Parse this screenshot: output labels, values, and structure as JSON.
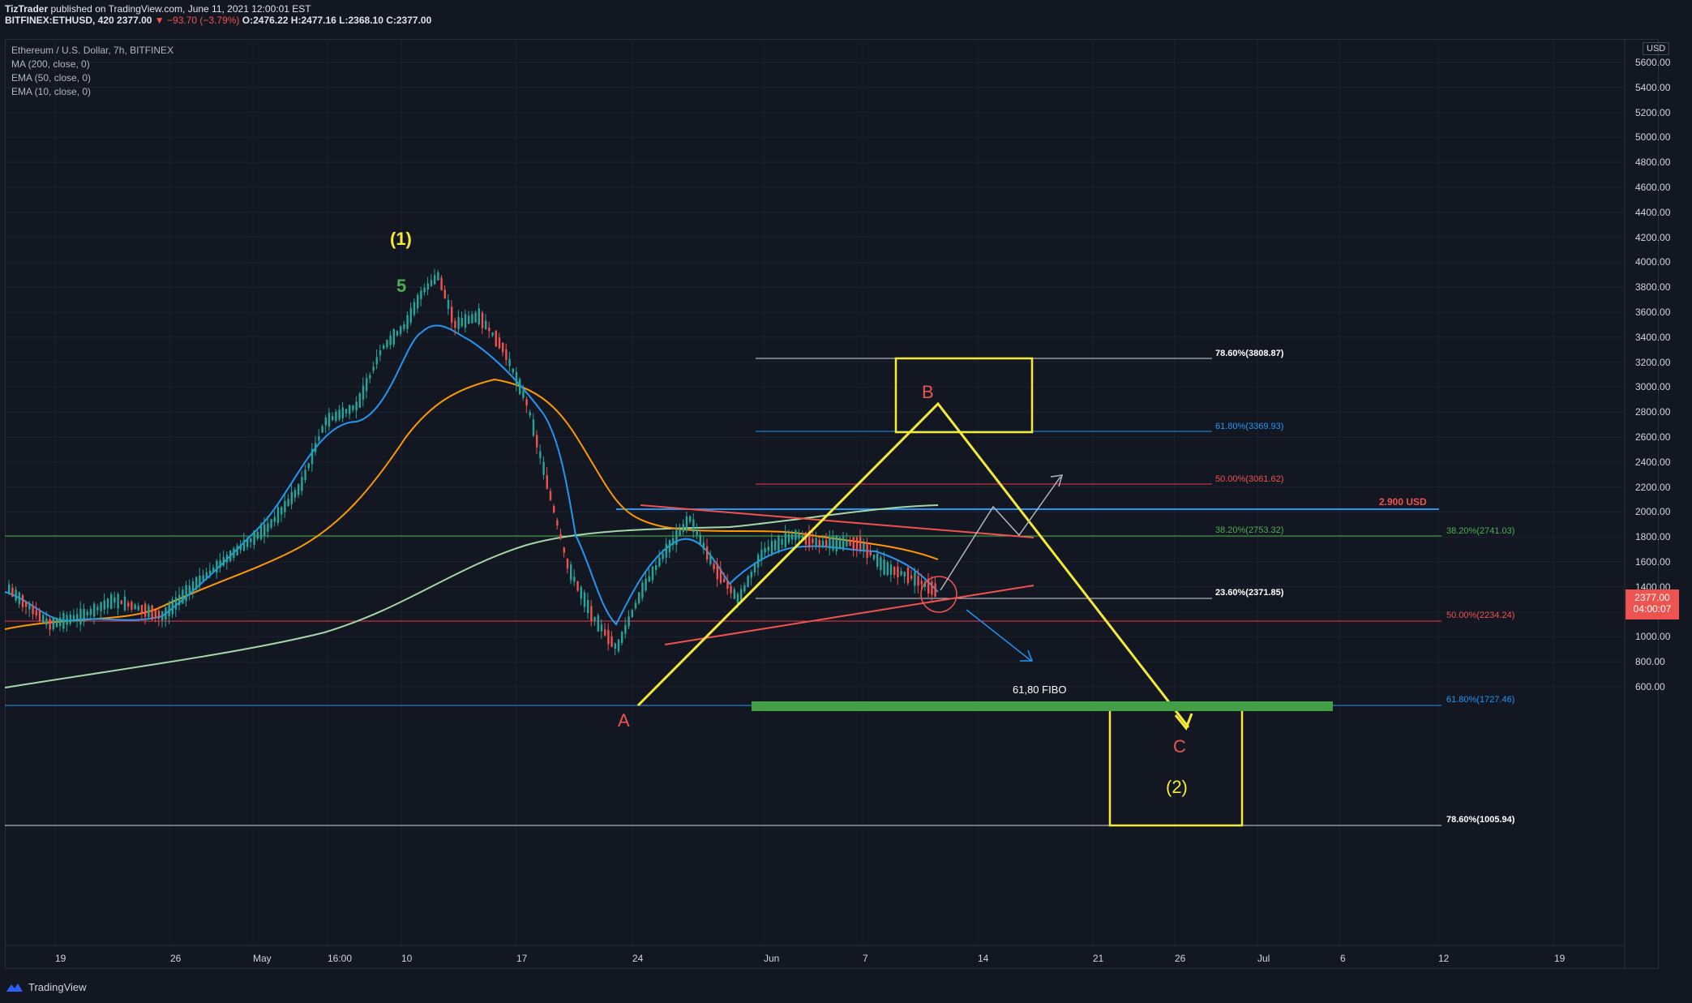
{
  "header": {
    "publisher": "TizTrader",
    "published_text": "published on TradingView.com, June 11, 2021 12:00:01 EST",
    "symbol": "BITFINEX:ETHUSD, 420",
    "price": "2377.00",
    "change": "−93.70 (−3.79%)",
    "ohlc": "O:2476.22 H:2477.16 L:2368.10 C:2377.00"
  },
  "legend": {
    "title": "Ethereum / U.S. Dollar, 7h, BITFINEX",
    "ma200": "MA (200, close, 0)",
    "ema50": "EMA (50, close, 0)",
    "ema10": "EMA (10, close, 0)"
  },
  "axis": {
    "currency": "USD",
    "price_ticks": [
      "5600.00",
      "5400.00",
      "5200.00",
      "5000.00",
      "4800.00",
      "4600.00",
      "4400.00",
      "4200.00",
      "4000.00",
      "3800.00",
      "3600.00",
      "3400.00",
      "3200.00",
      "3000.00",
      "2800.00",
      "2600.00",
      "2400.00",
      "2200.00",
      "2000.00",
      "1800.00",
      "1600.00",
      "1400.00",
      "1200.00",
      "1000.00",
      "800.00",
      "600.00"
    ],
    "time_ticks": [
      "19",
      "26",
      "May",
      "16:00",
      "10",
      "17",
      "24",
      "Jun",
      "7",
      "14",
      "21",
      "26",
      "Jul",
      "6",
      "12",
      "19"
    ],
    "last_price": "2377.00",
    "countdown": "04:00:07"
  },
  "annotations": {
    "wave1": "(1)",
    "wave5": "5",
    "wave_a": "A",
    "wave_b": "B",
    "wave_c": "C",
    "wave2": "(2)",
    "fibo_label": "61,80 FIBO",
    "usd_level": "2.900 USD",
    "fib_r_786": "78.60%(3808.87)",
    "fib_r_618": "61.80%(3369.93)",
    "fib_r_50": "50.00%(3061.62)",
    "fib_r_382": "38.20%(2753.32)",
    "fib_r_236": "23.60%(2371.85)",
    "fib_l_382": "38.20%(2741.03)",
    "fib_l_50": "50.00%(2234.24)",
    "fib_l_618": "61.80%(1727.46)",
    "fib_l_786": "78.60%(1005.94)"
  },
  "footer": {
    "brand": "TradingView"
  },
  "colors": {
    "bg": "#131722",
    "up": "#26a69a",
    "down": "#ef5350",
    "yellow": "#f5e93a",
    "ma200": "#a5d6a7",
    "ema50": "#ff9800",
    "ema10": "#2196f3"
  }
}
